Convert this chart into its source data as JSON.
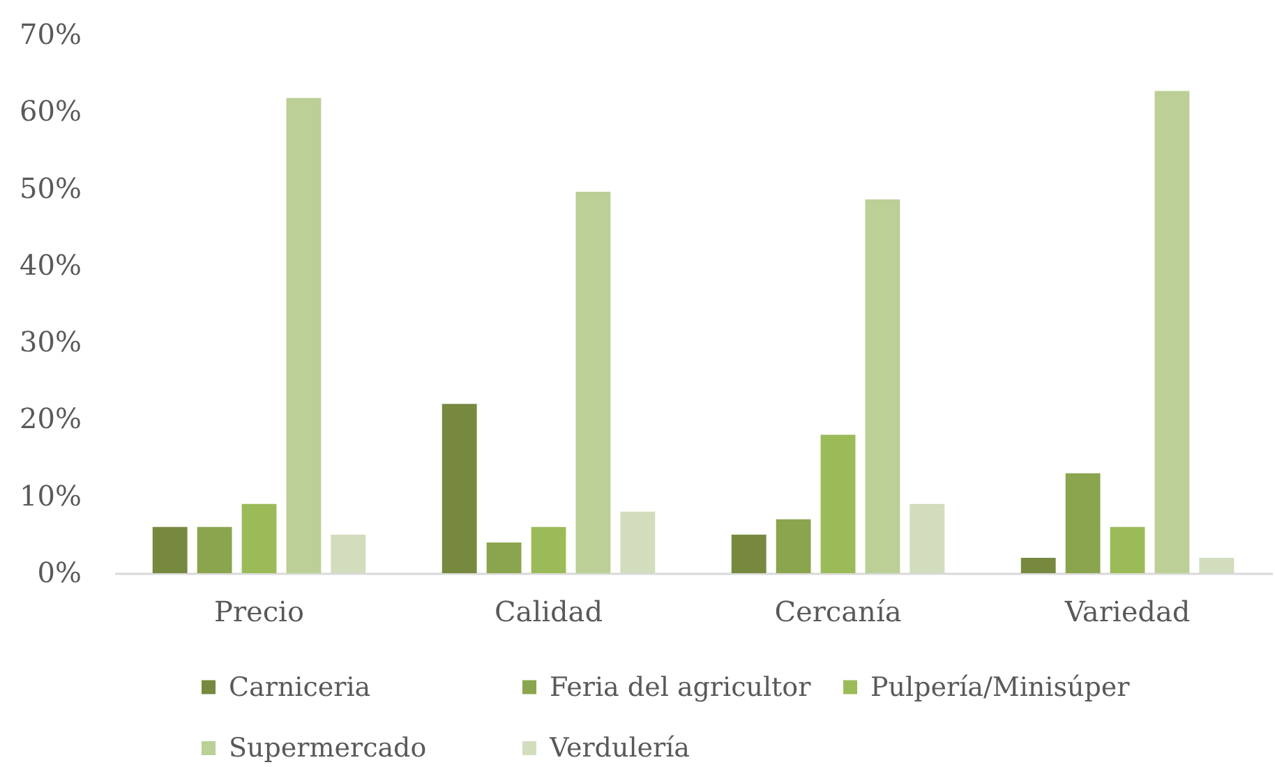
{
  "chart_data": {
    "type": "bar",
    "categories": [
      "Precio",
      "Calidad",
      "Cercanía",
      "Variedad"
    ],
    "series": [
      {
        "name": "Carniceria",
        "color": "#76893f",
        "values": [
          6,
          22,
          5,
          2
        ]
      },
      {
        "name": "Feria del agricultor",
        "color": "#8aa54e",
        "values": [
          6,
          4,
          7,
          13
        ]
      },
      {
        "name": "Pulpería/Minisúper",
        "color": "#9bbb59",
        "values": [
          9,
          6,
          18,
          6
        ]
      },
      {
        "name": "Supermercado",
        "color": "#bbcf96",
        "values": [
          61.8,
          49.6,
          48.6,
          62.7
        ]
      },
      {
        "name": "Verdulería",
        "color": "#d1ddbd",
        "values": [
          5,
          8,
          9,
          2
        ]
      }
    ],
    "ylim": [
      0,
      70
    ],
    "yticks": [
      {
        "value": 0,
        "label": "0%"
      },
      {
        "value": 10,
        "label": "10%"
      },
      {
        "value": 20,
        "label": "20%"
      },
      {
        "value": 30,
        "label": "30%"
      },
      {
        "value": 40,
        "label": "40%"
      },
      {
        "value": 50,
        "label": "50%"
      },
      {
        "value": 60,
        "label": "60%"
      },
      {
        "value": 70,
        "label": "70%"
      }
    ],
    "legend": "bottom"
  }
}
